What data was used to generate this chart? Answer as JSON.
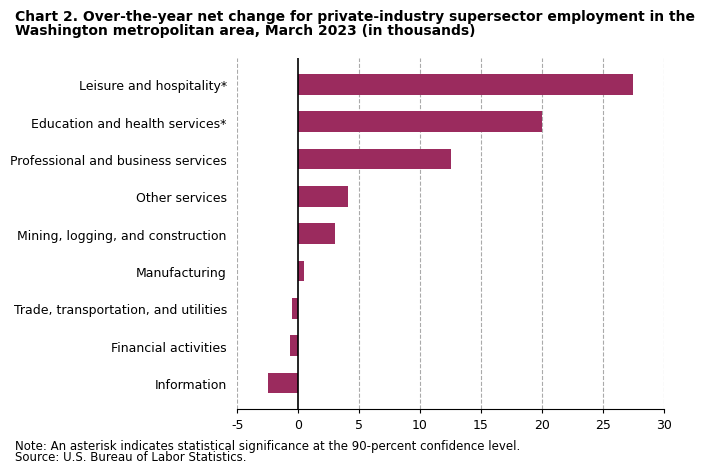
{
  "title_line1": "Chart 2. Over-the-year net change for private-industry supersector employment in the",
  "title_line2": "Washington metropolitan area, March 2023 (in thousands)",
  "categories": [
    "Information",
    "Financial activities",
    "Trade, transportation, and utilities",
    "Manufacturing",
    "Mining, logging, and construction",
    "Other services",
    "Professional and business services",
    "Education and health services*",
    "Leisure and hospitality*"
  ],
  "values": [
    -2.5,
    -0.7,
    -0.5,
    0.5,
    3.0,
    4.1,
    12.5,
    20.0,
    27.5
  ],
  "bar_color": "#9b2b5e",
  "xlim": [
    -5,
    30
  ],
  "xticks": [
    -5,
    0,
    5,
    10,
    15,
    20,
    25,
    30
  ],
  "grid_color": "#aaaaaa",
  "background_color": "#ffffff",
  "note_line1": "Note: An asterisk indicates statistical significance at the 90-percent confidence level.",
  "note_line2": "Source: U.S. Bureau of Labor Statistics.",
  "title_fontsize": 10.0,
  "label_fontsize": 9.0,
  "tick_fontsize": 9.0,
  "note_fontsize": 8.5
}
